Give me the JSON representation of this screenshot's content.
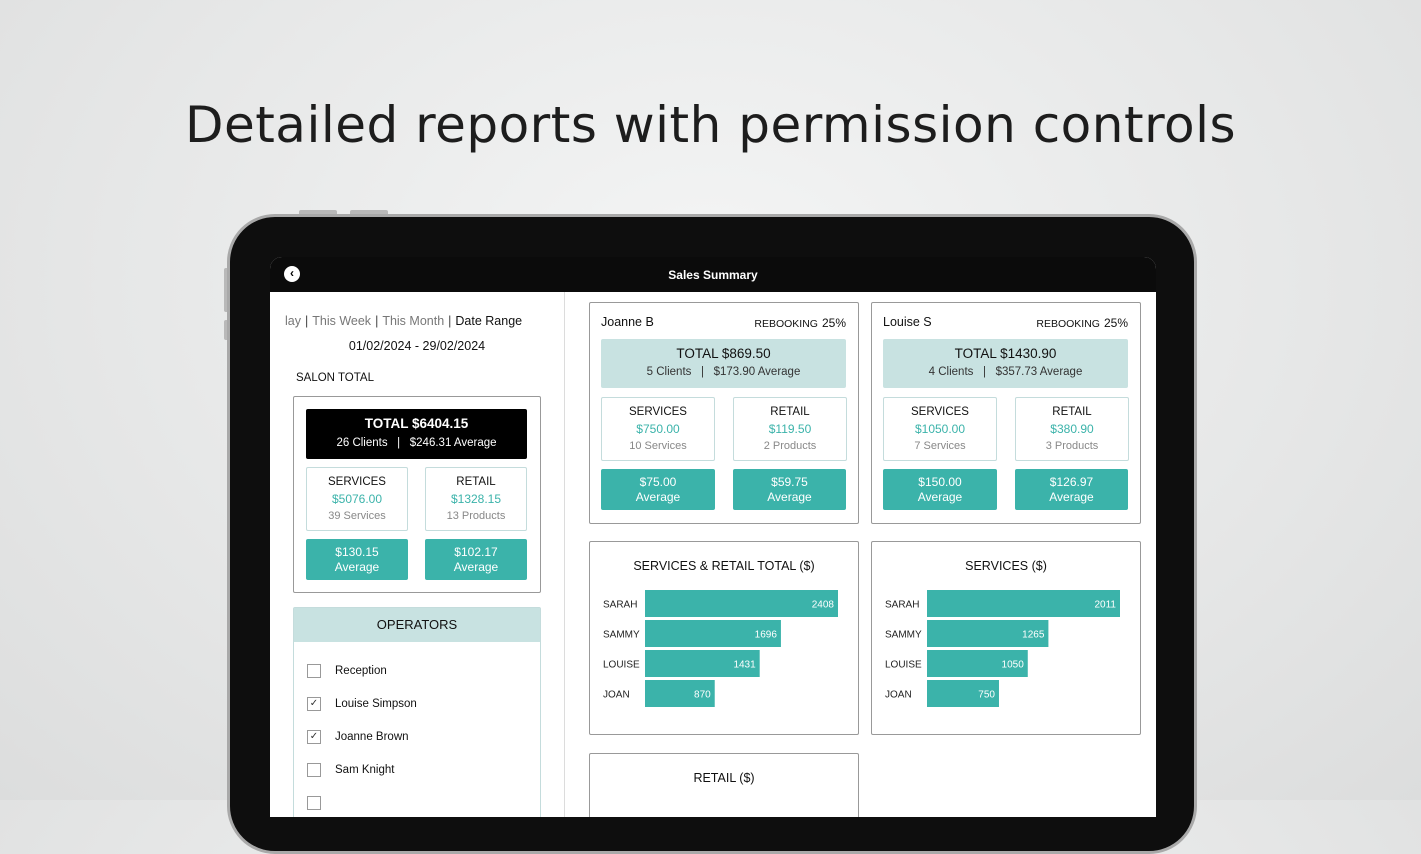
{
  "headline": "Detailed reports with permission controls",
  "topbar": {
    "title": "Sales Summary",
    "back_icon": "chevron-left-icon"
  },
  "filters": {
    "ranges": [
      "lay",
      "This Week",
      "This Month",
      "Date Range"
    ],
    "active": "Date Range",
    "date_range": "01/02/2024 - 29/02/2024"
  },
  "salon": {
    "label": "SALON TOTAL",
    "total": "TOTAL $6404.15",
    "clients": "26 Clients",
    "average": "$246.31 Average",
    "services": {
      "label": "SERVICES",
      "amount": "$5076.00",
      "count": "39 Services",
      "avg": "$130.15",
      "avg_label": "Average"
    },
    "retail": {
      "label": "RETAIL",
      "amount": "$1328.15",
      "count": "13 Products",
      "avg": "$102.17",
      "avg_label": "Average"
    }
  },
  "operators": {
    "title": "OPERATORS",
    "items": [
      {
        "name": "Reception",
        "checked": false
      },
      {
        "name": "Louise Simpson",
        "checked": true
      },
      {
        "name": "Joanne Brown",
        "checked": true
      },
      {
        "name": "Sam Knight",
        "checked": false
      }
    ]
  },
  "staff_cards": [
    {
      "name": "Joanne B",
      "rebooking_label": "REBOOKING",
      "rebooking": "25%",
      "total": "TOTAL $869.50",
      "clients": "5 Clients",
      "average": "$173.90 Average",
      "services": {
        "label": "SERVICES",
        "amount": "$750.00",
        "count": "10 Services",
        "avg": "$75.00",
        "avg_label": "Average"
      },
      "retail": {
        "label": "RETAIL",
        "amount": "$119.50",
        "count": "2 Products",
        "avg": "$59.75",
        "avg_label": "Average"
      }
    },
    {
      "name": "Louise S",
      "rebooking_label": "REBOOKING",
      "rebooking": "25%",
      "total": "TOTAL $1430.90",
      "clients": "4 Clients",
      "average": "$357.73 Average",
      "services": {
        "label": "SERVICES",
        "amount": "$1050.00",
        "count": "7 Services",
        "avg": "$150.00",
        "avg_label": "Average"
      },
      "retail": {
        "label": "RETAIL",
        "amount": "$380.90",
        "count": "3 Products",
        "avg": "$126.97",
        "avg_label": "Average"
      }
    }
  ],
  "colors": {
    "accent": "#3bb3aa",
    "light_accent": "#c8e2e1"
  },
  "chart_data": [
    {
      "type": "bar",
      "orientation": "horizontal",
      "title": "SERVICES & RETAIL TOTAL ($)",
      "categories": [
        "SARAH",
        "SAMMY",
        "LOUISE",
        "JOAN"
      ],
      "values": [
        2408,
        1696,
        1431,
        870
      ],
      "xlim": [
        0,
        2408
      ]
    },
    {
      "type": "bar",
      "orientation": "horizontal",
      "title": "SERVICES ($)",
      "categories": [
        "SARAH",
        "SAMMY",
        "LOUISE",
        "JOAN"
      ],
      "values": [
        2011,
        1265,
        1050,
        750
      ],
      "xlim": [
        0,
        2011
      ]
    },
    {
      "type": "bar",
      "orientation": "horizontal",
      "title": "RETAIL ($)",
      "categories": [],
      "values": []
    }
  ]
}
